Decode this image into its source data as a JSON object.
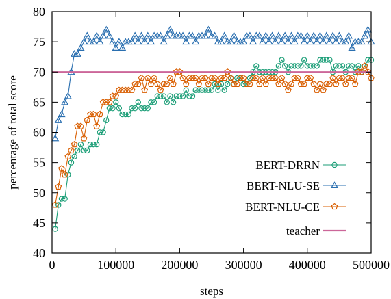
{
  "chart_data": {
    "type": "line",
    "xlabel": "steps",
    "ylabel": "percentage of total score",
    "xlim": [
      0,
      500000
    ],
    "ylim": [
      40,
      80
    ],
    "x_ticks": [
      0,
      100000,
      200000,
      300000,
      400000,
      500000
    ],
    "x_tick_labels": [
      "0",
      "100000",
      "200000",
      "300000",
      "400000",
      "500000"
    ],
    "y_ticks": [
      40,
      45,
      50,
      55,
      60,
      65,
      70,
      75,
      80
    ],
    "y_tick_labels": [
      "40",
      "45",
      "50",
      "55",
      "60",
      "65",
      "70",
      "75",
      "80"
    ],
    "grid": false,
    "legend_position": "bottom-right",
    "x": [
      5000,
      10000,
      15000,
      20000,
      25000,
      30000,
      35000,
      40000,
      45000,
      50000,
      55000,
      60000,
      65000,
      70000,
      75000,
      80000,
      85000,
      90000,
      95000,
      100000,
      105000,
      110000,
      115000,
      120000,
      125000,
      130000,
      135000,
      140000,
      145000,
      150000,
      155000,
      160000,
      165000,
      170000,
      175000,
      180000,
      185000,
      190000,
      195000,
      200000,
      205000,
      210000,
      215000,
      220000,
      225000,
      230000,
      235000,
      240000,
      245000,
      250000,
      255000,
      260000,
      265000,
      270000,
      275000,
      280000,
      285000,
      290000,
      295000,
      300000,
      305000,
      310000,
      315000,
      320000,
      325000,
      330000,
      335000,
      340000,
      345000,
      350000,
      355000,
      360000,
      365000,
      370000,
      375000,
      380000,
      385000,
      390000,
      395000,
      400000,
      405000,
      410000,
      415000,
      420000,
      425000,
      430000,
      435000,
      440000,
      445000,
      450000,
      455000,
      460000,
      465000,
      470000,
      475000,
      480000,
      485000,
      490000,
      495000,
      500000
    ],
    "series": [
      {
        "name": "BERT-DRRN",
        "color": "#1b9e77",
        "marker": "circle",
        "values": [
          44,
          48,
          49,
          49,
          53,
          55,
          56,
          57,
          58,
          57,
          57,
          58,
          58,
          58,
          60,
          60,
          62,
          64,
          64,
          65,
          64,
          63,
          63,
          63,
          64,
          64,
          65,
          64,
          64,
          64,
          65,
          65,
          66,
          66,
          66,
          65,
          66,
          65,
          66,
          66,
          66,
          67,
          66,
          66,
          67,
          67,
          67,
          67,
          67,
          67,
          68,
          67,
          68,
          67,
          68,
          69,
          68,
          69,
          69,
          68,
          68,
          69,
          70,
          71,
          70,
          70,
          70,
          70,
          70,
          70,
          71,
          72,
          71,
          70,
          71,
          71,
          71,
          71,
          72,
          71,
          71,
          71,
          71,
          72,
          72,
          72,
          72,
          70,
          71,
          71,
          71,
          70,
          71,
          71,
          70,
          71,
          70,
          71,
          72,
          72
        ]
      },
      {
        "name": "BERT-NLU-SE",
        "color": "#2a6fb0",
        "marker": "triangle",
        "values": [
          59,
          62,
          63,
          65,
          66,
          70,
          73,
          73,
          74,
          75,
          76,
          75,
          75,
          76,
          75,
          76,
          77,
          76,
          75,
          74,
          75,
          74,
          75,
          75,
          75,
          76,
          75,
          76,
          75,
          76,
          75,
          76,
          76,
          76,
          75,
          76,
          77,
          76,
          76,
          76,
          76,
          75,
          76,
          76,
          75,
          76,
          76,
          76,
          77,
          76,
          76,
          75,
          75,
          76,
          75,
          75,
          76,
          75,
          75,
          75,
          76,
          76,
          75,
          76,
          76,
          75,
          76,
          75,
          76,
          75,
          76,
          75,
          76,
          75,
          76,
          75,
          76,
          76,
          75,
          76,
          75,
          76,
          75,
          76,
          75,
          76,
          75,
          76,
          75,
          76,
          75,
          75,
          76,
          74,
          75,
          75,
          75,
          76,
          77,
          75
        ]
      },
      {
        "name": "BERT-NLU-CE",
        "color": "#d95f02",
        "marker": "pentagon",
        "values": [
          48,
          51,
          54,
          53,
          56,
          57,
          58,
          61,
          61,
          59,
          62,
          63,
          63,
          61,
          63,
          65,
          65,
          65,
          66,
          66,
          67,
          67,
          67,
          67,
          67,
          68,
          68,
          69,
          67,
          69,
          68,
          69,
          68,
          67,
          68,
          68,
          69,
          68,
          70,
          70,
          69,
          68,
          69,
          69,
          69,
          68,
          69,
          69,
          68,
          69,
          69,
          68,
          69,
          69,
          70,
          69,
          68,
          68,
          69,
          69,
          68,
          68,
          69,
          69,
          68,
          69,
          68,
          69,
          69,
          69,
          68,
          69,
          68,
          67,
          68,
          69,
          69,
          68,
          68,
          69,
          69,
          68,
          67,
          68,
          67,
          68,
          68,
          69,
          68,
          69,
          69,
          68,
          69,
          69,
          68,
          70,
          70,
          71,
          70,
          69
        ]
      },
      {
        "name": "teacher",
        "color": "#cc6699",
        "marker": "none",
        "constant": 70
      }
    ]
  }
}
